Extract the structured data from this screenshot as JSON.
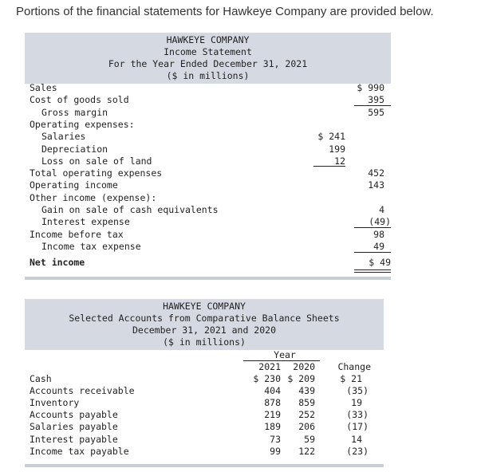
{
  "intro": "Portions of the financial statements for Hawkeye Company are provided below.",
  "income": {
    "header": [
      "HAWKEYE COMPANY",
      "Income Statement",
      "For the Year Ended December 31, 2021",
      "($ in millions)"
    ],
    "rows": [
      {
        "label": "Sales",
        "indent": 0,
        "c1": "",
        "c2": "$ 990"
      },
      {
        "label": "Cost of goods sold",
        "indent": 0,
        "c1": "",
        "c2": "395"
      },
      {
        "label": "Gross margin",
        "indent": 1,
        "c1": "",
        "c2": "595"
      },
      {
        "label": "Operating expenses:",
        "indent": 0,
        "c1": "",
        "c2": ""
      },
      {
        "label": "Salaries",
        "indent": 1,
        "c1": "$ 241",
        "c2": ""
      },
      {
        "label": "Depreciation",
        "indent": 1,
        "c1": "199",
        "c2": ""
      },
      {
        "label": "Loss on sale of land",
        "indent": 1,
        "c1": "12",
        "c2": ""
      },
      {
        "label": "Total operating expenses",
        "indent": 0,
        "c1": "",
        "c2": "452"
      },
      {
        "label": "Operating income",
        "indent": 0,
        "c1": "",
        "c2": "143"
      },
      {
        "label": "Other income (expense):",
        "indent": 0,
        "c1": "",
        "c2": ""
      },
      {
        "label": "Gain on sale of cash equivalents",
        "indent": 1,
        "c1": "",
        "c2": "4"
      },
      {
        "label": "Interest expense",
        "indent": 1,
        "c1": "",
        "c2": "(49)"
      },
      {
        "label": "Income before tax",
        "indent": 0,
        "c1": "",
        "c2": "98"
      },
      {
        "label": "Income tax expense",
        "indent": 1,
        "c1": "",
        "c2": "49"
      }
    ],
    "net_label": "Net income",
    "net_value": "$  49"
  },
  "balance": {
    "header": [
      "HAWKEYE COMPANY",
      "Selected Accounts from Comparative Balance Sheets",
      "December 31, 2021 and 2020",
      "($ in millions)"
    ],
    "year_label": "Year",
    "col_2021": "2021",
    "col_2020": "2020",
    "col_change": "Change",
    "rows": [
      {
        "label": "Cash",
        "y2021": "$ 230",
        "y2020": "$ 209",
        "change": "$ 21"
      },
      {
        "label": "Accounts receivable",
        "y2021": "404",
        "y2020": "439",
        "change": "(35)"
      },
      {
        "label": "Inventory",
        "y2021": "878",
        "y2020": "859",
        "change": "19"
      },
      {
        "label": "Accounts payable",
        "y2021": "219",
        "y2020": "252",
        "change": "(33)"
      },
      {
        "label": "Salaries payable",
        "y2021": "189",
        "y2020": "206",
        "change": "(17)"
      },
      {
        "label": "Interest payable",
        "y2021": "73",
        "y2020": "59",
        "change": "14"
      },
      {
        "label": "Income tax payable",
        "y2021": "99",
        "y2020": "122",
        "change": "(23)"
      }
    ]
  }
}
